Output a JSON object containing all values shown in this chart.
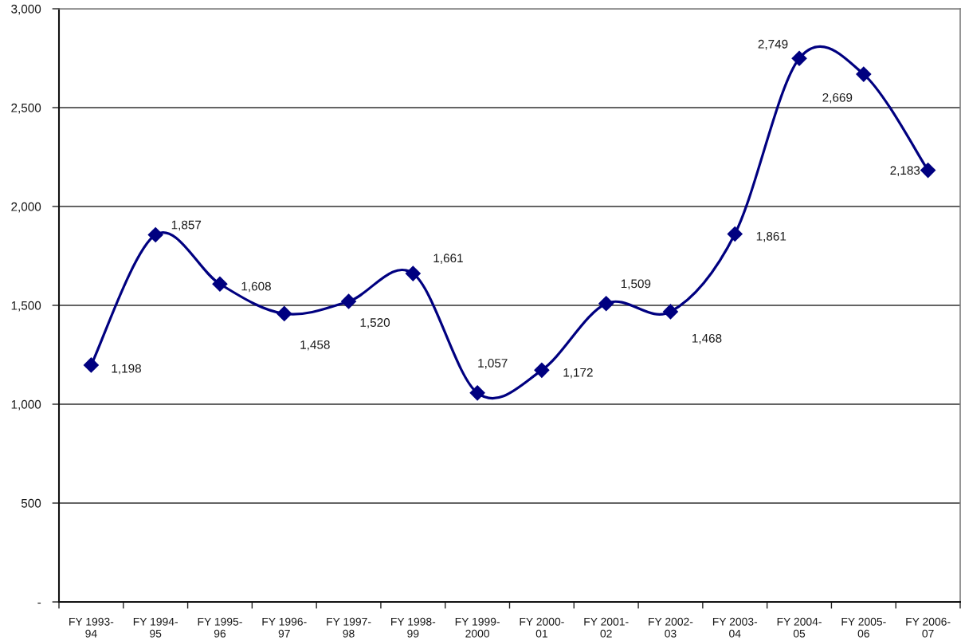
{
  "chart_data": {
    "type": "line",
    "categories": [
      "FY 1993-\n94",
      "FY 1994-\n95",
      "FY 1995-\n96",
      "FY 1996-\n97",
      "FY 1997-\n98",
      "FY 1998-\n99",
      "FY 1999-\n2000",
      "FY 2000-\n01",
      "FY 2001-\n02",
      "FY 2002-\n03",
      "FY 2003-\n04",
      "FY 2004-\n05",
      "FY 2005-\n06",
      "FY 2006-\n07"
    ],
    "series": [
      {
        "color": "#000080",
        "values": [
          1198,
          1857,
          1608,
          1458,
          1520,
          1661,
          1057,
          1172,
          1509,
          1468,
          1861,
          2749,
          2669,
          2183
        ],
        "value_labels": [
          "1,198",
          "1,857",
          "1,608",
          "1,458",
          "1,520",
          "1,661",
          "1,057",
          "1,172",
          "1,509",
          "1,468",
          "1,861",
          "2,749",
          "2,669",
          "2,183"
        ]
      }
    ],
    "ylim": [
      0,
      3000
    ],
    "yticks": [
      {
        "value": 0,
        "label": "-"
      },
      {
        "value": 500,
        "label": "500"
      },
      {
        "value": 1000,
        "label": "1,000"
      },
      {
        "value": 1500,
        "label": "1,500"
      },
      {
        "value": 2000,
        "label": "2,000"
      },
      {
        "value": 2500,
        "label": "2,500"
      },
      {
        "value": 3000,
        "label": "3,000"
      }
    ],
    "grid": "y",
    "marker": "diamond",
    "line_style": "solid",
    "legend": false
  }
}
